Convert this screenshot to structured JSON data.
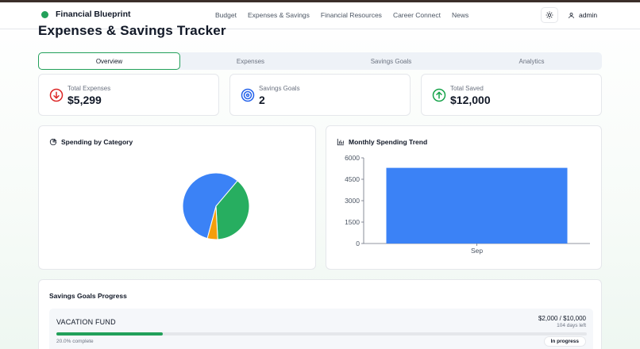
{
  "app": {
    "name": "Financial Blueprint"
  },
  "nav": {
    "links": [
      "Budget",
      "Expenses & Savings",
      "Financial Resources",
      "Career Connect",
      "News"
    ],
    "user": "admin",
    "theme_icon": "sun-icon"
  },
  "page": {
    "title": "Expenses & Savings Tracker"
  },
  "tabs": [
    {
      "label": "Overview",
      "active": true
    },
    {
      "label": "Expenses",
      "active": false
    },
    {
      "label": "Savings Goals",
      "active": false
    },
    {
      "label": "Analytics",
      "active": false
    }
  ],
  "stats": [
    {
      "label": "Total Expenses",
      "value": "$5,299",
      "icon": "arrow-down-circle-icon",
      "color": "#dc2626"
    },
    {
      "label": "Savings Goals",
      "value": "2",
      "icon": "target-icon",
      "color": "#2563eb"
    },
    {
      "label": "Total Saved",
      "value": "$12,000",
      "icon": "arrow-up-circle-icon",
      "color": "#16a34a"
    }
  ],
  "spending_by_category": {
    "title": "Spending by Category",
    "chart_data": {
      "type": "pie",
      "slices": [
        {
          "value": 57,
          "color": "#3b82f6"
        },
        {
          "value": 38,
          "color": "#27ae60"
        },
        {
          "value": 5,
          "color": "#f59e0b"
        }
      ]
    }
  },
  "monthly_trend": {
    "title": "Monthly Spending Trend",
    "chart_data": {
      "type": "bar",
      "categories": [
        "Sep"
      ],
      "values": [
        5299
      ],
      "ylim": [
        0,
        6000
      ],
      "yticks": [
        0,
        1500,
        3000,
        4500,
        6000
      ],
      "color": "#3b82f6"
    }
  },
  "savings_goals": {
    "title": "Savings Goals Progress",
    "items": [
      {
        "name": "VACATION FUND",
        "amount": "$2,000 / $10,000",
        "days_left": "104 days left",
        "progress": 0.2,
        "complete_text": "20.0% complete",
        "status": "In progress"
      }
    ]
  }
}
